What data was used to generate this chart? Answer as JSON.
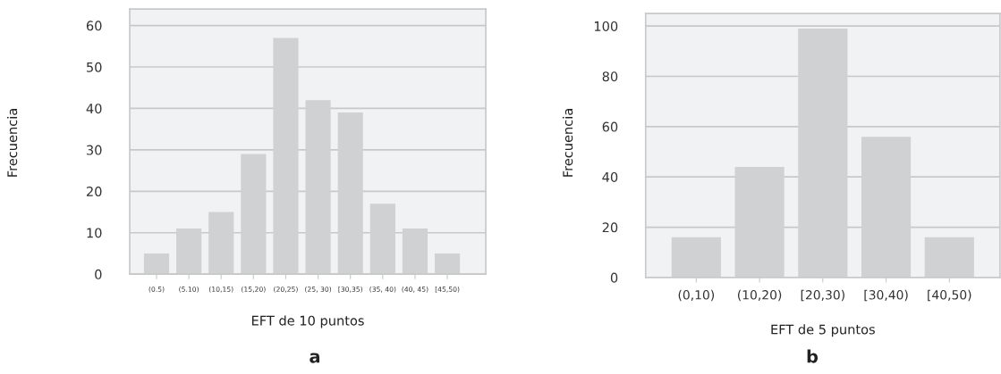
{
  "chart_data": [
    {
      "type": "bar",
      "title": "a",
      "xlabel": "EFT de 10 puntos",
      "ylabel": "Frecuencia",
      "categories": [
        "(0.5)",
        "(5.10)",
        "(10,15)",
        "(15,20)",
        "(20,25)",
        "(25, 30)",
        "[30,35)",
        "(35, 40)",
        "(40, 45)",
        "[45,50)"
      ],
      "values": [
        5,
        11,
        15,
        29,
        57,
        42,
        39,
        17,
        11,
        5
      ],
      "color": "#d0d1d3",
      "ylim": [
        0,
        64
      ],
      "yticks": [
        0,
        10,
        20,
        30,
        40,
        50,
        60
      ],
      "grid": "y",
      "legend": false
    },
    {
      "type": "bar",
      "title": "b",
      "xlabel": "EFT de 5 puntos",
      "ylabel": "Frecuencia",
      "categories": [
        "(0,10)",
        "(10,20)",
        "[20,30)",
        "[30,40)",
        "[40,50)"
      ],
      "values": [
        16,
        44,
        99,
        56,
        16
      ],
      "color": "#d0d1d3",
      "ylim": [
        0,
        105
      ],
      "yticks": [
        0,
        20,
        40,
        60,
        80,
        100
      ],
      "grid": "y",
      "legend": false
    }
  ]
}
